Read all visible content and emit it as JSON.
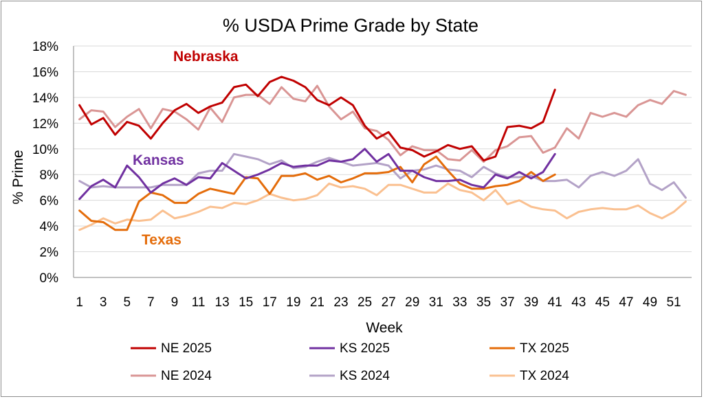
{
  "chart_data": {
    "type": "line",
    "title": "% USDA Prime Grade by State",
    "xlabel": "Week",
    "ylabel": "% Prime",
    "xlim": [
      1,
      52
    ],
    "ylim": [
      0,
      18
    ],
    "yticks": [
      "0%",
      "2%",
      "4%",
      "6%",
      "8%",
      "10%",
      "12%",
      "14%",
      "16%",
      "18%"
    ],
    "ytick_values": [
      0,
      2,
      4,
      6,
      8,
      10,
      12,
      14,
      16,
      18
    ],
    "xticks": [
      "1",
      "3",
      "5",
      "7",
      "9",
      "11",
      "13",
      "15",
      "17",
      "19",
      "21",
      "23",
      "25",
      "27",
      "29",
      "31",
      "33",
      "35",
      "37",
      "39",
      "41",
      "43",
      "45",
      "47",
      "49",
      "51"
    ],
    "grid": "horizontal",
    "legend_position": "bottom",
    "annotations": [
      {
        "text": "Nebraska",
        "color": "#c00000"
      },
      {
        "text": "Kansas",
        "color": "#7030a0"
      },
      {
        "text": "Texas",
        "color": "#e46c0a"
      }
    ],
    "series": [
      {
        "name": "NE 2025",
        "color": "#c00000",
        "width": 3,
        "values": [
          13.4,
          11.9,
          12.4,
          11.1,
          12.1,
          11.8,
          10.8,
          12.0,
          13.0,
          13.5,
          12.8,
          13.3,
          13.6,
          14.8,
          15.0,
          14.1,
          15.2,
          15.6,
          15.3,
          14.8,
          13.8,
          13.4,
          14.0,
          13.4,
          11.8,
          10.8,
          11.3,
          10.1,
          9.9,
          9.4,
          9.8,
          10.3,
          10.0,
          10.2,
          9.1,
          9.4,
          11.7,
          11.8,
          11.6,
          12.1,
          14.6
        ]
      },
      {
        "name": "KS 2025",
        "color": "#7030a0",
        "width": 3,
        "values": [
          6.1,
          7.1,
          7.6,
          7.0,
          8.7,
          7.8,
          6.6,
          7.3,
          7.7,
          7.2,
          7.8,
          7.7,
          8.9,
          8.3,
          7.7,
          8.0,
          8.4,
          8.9,
          8.6,
          8.7,
          8.7,
          9.1,
          9.0,
          9.2,
          10.0,
          9.0,
          9.6,
          8.3,
          8.3,
          7.8,
          7.5,
          7.5,
          7.6,
          7.2,
          7.0,
          8.0,
          7.7,
          8.2,
          7.7,
          8.2,
          9.6
        ]
      },
      {
        "name": "TX 2025",
        "color": "#e46c0a",
        "width": 3,
        "values": [
          5.2,
          4.4,
          4.3,
          3.7,
          3.7,
          5.9,
          6.6,
          6.4,
          5.8,
          5.8,
          6.5,
          6.9,
          6.7,
          6.5,
          7.8,
          7.7,
          6.5,
          7.9,
          7.9,
          8.1,
          7.6,
          7.9,
          7.4,
          7.7,
          8.1,
          8.1,
          8.2,
          8.6,
          7.4,
          8.8,
          9.4,
          8.3,
          7.3,
          6.9,
          6.9,
          7.1,
          7.2,
          7.5,
          8.2,
          7.5,
          8.0
        ]
      },
      {
        "name": "NE 2024",
        "color": "#d99594",
        "width": 3,
        "values": [
          12.3,
          13.0,
          12.9,
          11.7,
          12.5,
          13.1,
          11.6,
          13.1,
          12.9,
          12.3,
          11.5,
          13.2,
          12.1,
          14.0,
          14.2,
          14.2,
          13.5,
          14.8,
          13.9,
          13.7,
          14.9,
          13.3,
          12.3,
          12.9,
          11.6,
          11.4,
          10.7,
          9.5,
          10.2,
          9.9,
          9.9,
          9.2,
          9.1,
          9.9,
          9.0,
          9.9,
          10.2,
          10.9,
          11.0,
          9.7,
          10.1,
          11.6,
          10.8,
          12.8,
          12.5,
          12.8,
          12.5,
          13.4,
          13.8,
          13.5,
          14.5,
          14.2
        ]
      },
      {
        "name": "KS 2024",
        "color": "#b3a2c7",
        "width": 3,
        "values": [
          7.5,
          7.0,
          7.1,
          7.0,
          7.0,
          7.0,
          7.0,
          7.2,
          7.2,
          7.2,
          8.1,
          8.3,
          8.3,
          9.6,
          9.4,
          9.2,
          8.8,
          9.1,
          8.5,
          8.6,
          9.0,
          9.3,
          9.0,
          8.7,
          8.8,
          8.9,
          8.7,
          7.7,
          8.3,
          8.4,
          8.7,
          8.4,
          8.3,
          7.8,
          8.6,
          8.1,
          7.8,
          7.8,
          7.9,
          7.5,
          7.5,
          7.6,
          7.0,
          7.9,
          8.2,
          7.9,
          8.3,
          9.2,
          7.3,
          6.8,
          7.4,
          6.2
        ]
      },
      {
        "name": "TX 2024",
        "color": "#fac090",
        "width": 3,
        "values": [
          3.7,
          4.1,
          4.6,
          4.2,
          4.5,
          4.4,
          4.5,
          5.2,
          4.6,
          4.8,
          5.1,
          5.5,
          5.4,
          5.8,
          5.7,
          6.0,
          6.5,
          6.2,
          6.0,
          6.1,
          6.4,
          7.3,
          7.0,
          7.1,
          6.9,
          6.4,
          7.2,
          7.2,
          6.9,
          6.6,
          6.6,
          7.3,
          6.8,
          6.6,
          6.0,
          6.8,
          5.7,
          6.0,
          5.5,
          5.3,
          5.2,
          4.6,
          5.1,
          5.3,
          5.4,
          5.3,
          5.3,
          5.6,
          5.0,
          4.6,
          5.1,
          5.9
        ]
      }
    ]
  }
}
